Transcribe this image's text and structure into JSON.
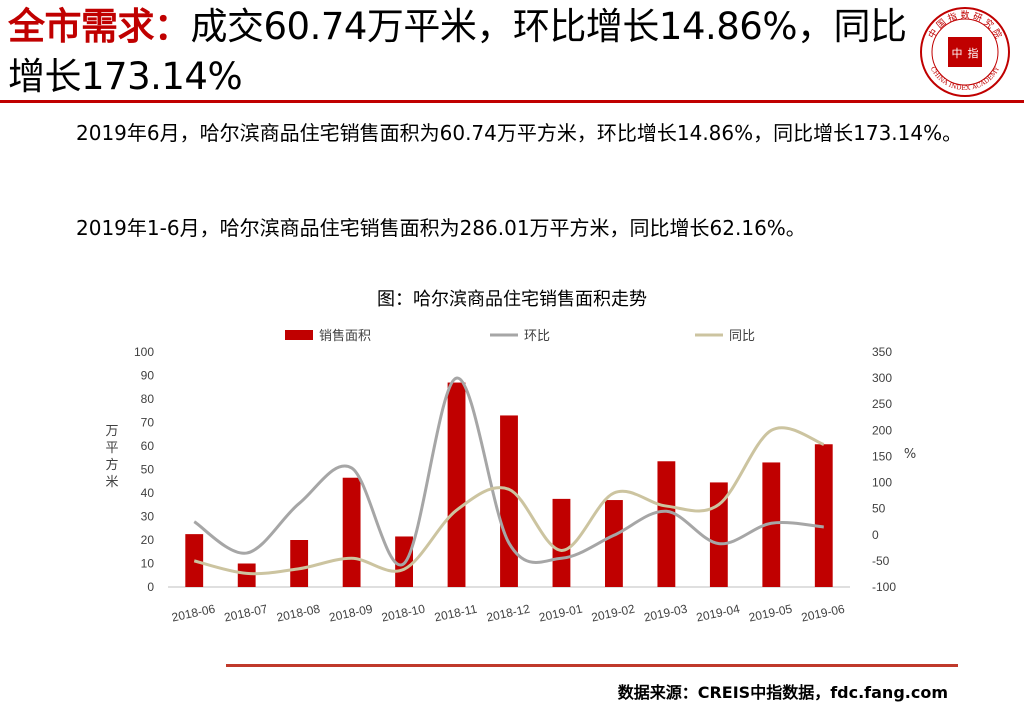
{
  "header": {
    "keyword": "全市需求：",
    "title_rest": "成交60.74万平米，环比增长14.86%，同比增长173.14%"
  },
  "logo": {
    "text_top": "中 国 指 数 研 究 院",
    "text_bottom": "CHINA INDEX ACADEMY",
    "center_left": "中",
    "center_right": "指"
  },
  "body": {
    "paragraph1": "2019年6月，哈尔滨商品住宅销售面积为60.74万平方米，环比增长14.86%，同比增长173.14%。",
    "paragraph2": "2019年1-6月，哈尔滨商品住宅销售面积为286.01万平方米，同比增长62.16%。"
  },
  "chart_title": "图：哈尔滨商品住宅销售面积走势",
  "chart_data": {
    "type": "bar",
    "categories": [
      "2018-06",
      "2018-07",
      "2018-08",
      "2018-09",
      "2018-10",
      "2018-11",
      "2018-12",
      "2019-01",
      "2019-02",
      "2019-03",
      "2019-04",
      "2019-05",
      "2019-06"
    ],
    "series": [
      {
        "name": "销售面积",
        "type": "bar",
        "axis": "left",
        "color": "#c00000",
        "values": [
          22.5,
          10,
          20,
          46.5,
          21.5,
          87,
          73,
          37.5,
          37,
          53.5,
          44.5,
          53,
          60.74
        ]
      },
      {
        "name": "环比",
        "type": "line",
        "axis": "right",
        "color": "#a6a6a6",
        "values": [
          25,
          -35,
          60,
          128,
          -55,
          300,
          -16,
          -45,
          -1,
          45,
          -17,
          22,
          15
        ]
      },
      {
        "name": "同比",
        "type": "line",
        "axis": "right",
        "color": "#ccc4a0",
        "values": [
          -50,
          -74,
          -65,
          -45,
          -66,
          47,
          87,
          -30,
          80,
          55,
          58,
          200,
          173
        ]
      }
    ],
    "ylabel_left": "万平方米",
    "ylabel_right": "%",
    "ylim_left": [
      0,
      100
    ],
    "ylim_right": [
      -100,
      350
    ],
    "yticks_left": [
      0,
      10,
      20,
      30,
      40,
      50,
      60,
      70,
      80,
      90,
      100
    ],
    "yticks_right": [
      -100,
      -50,
      0,
      50,
      100,
      150,
      200,
      250,
      300,
      350
    ],
    "legend_position": "top",
    "grid": false
  },
  "source": "数据来源：CREIS中指数据，fdc.fang.com"
}
